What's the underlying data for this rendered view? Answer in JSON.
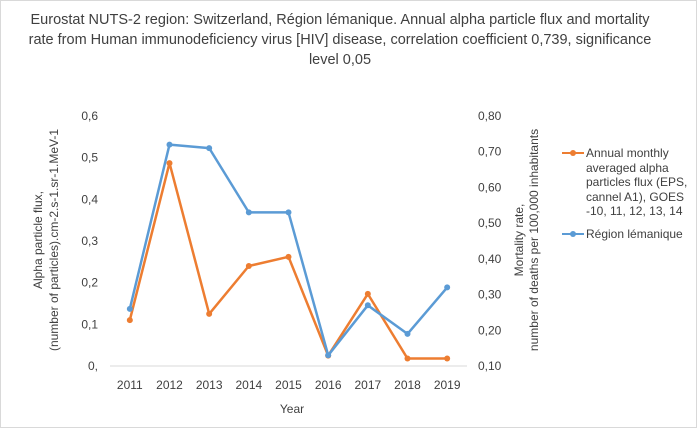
{
  "chart_data": {
    "type": "line",
    "title": "Eurostat NUTS-2 region: Switzerland, Région lémanique. Annual alpha particle flux and mortality rate from Human immunodeficiency virus [HIV] disease, correlation coefficient 0,739, significance level 0,05",
    "x": [
      "2011",
      "2012",
      "2013",
      "2014",
      "2015",
      "2016",
      "2017",
      "2018",
      "2019"
    ],
    "xlabel": "Year",
    "ylabel_left_lines": [
      "Alpha particle flux,",
      "(number of particles).cm-2.s-1.sr-1.MeV-1"
    ],
    "ylabel_right_lines": [
      "Mortality rate,",
      "number of deaths per 100,000 inhabitants"
    ],
    "y_left_ticks": [
      "0,",
      "0,1",
      "0,2",
      "0,3",
      "0,4",
      "0,5",
      "0,6"
    ],
    "y_right_ticks": [
      "0,10",
      "0,20",
      "0,30",
      "0,40",
      "0,50",
      "0,60",
      "0,70",
      "0,80"
    ],
    "ylim_left": [
      0,
      0.6
    ],
    "ylim_right": [
      0.1,
      0.8
    ],
    "grid": false,
    "legend_position": "right",
    "series": [
      {
        "name": "Annual monthly averaged alpha particles flux (EPS, cannel A1), GOES -10, 11, 12, 13, 14",
        "axis": "left",
        "color": "#ed7d31",
        "values": [
          0.11,
          0.487,
          0.125,
          0.24,
          0.262,
          0.025,
          0.173,
          0.018,
          0.018
        ]
      },
      {
        "name": "Région lémanique",
        "axis": "right",
        "color": "#5b9bd5",
        "values": [
          0.26,
          0.72,
          0.71,
          0.53,
          0.53,
          0.13,
          0.27,
          0.19,
          0.32
        ]
      }
    ]
  }
}
